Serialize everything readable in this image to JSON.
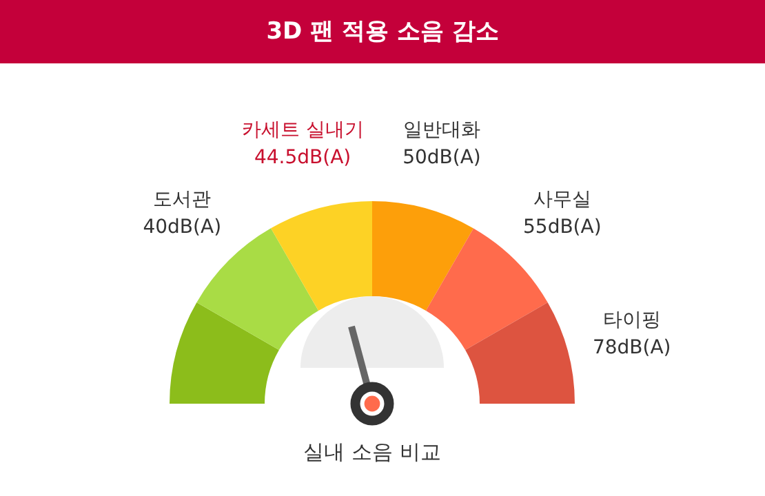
{
  "chart_data": {
    "type": "donut",
    "title": "3D 팬 적용 소음 감소",
    "categories": [
      null,
      "도서관\n40dB(A)",
      "카세트 실내기\n44.5dB(A)",
      "일반대화\n50dB(A)",
      "사무실\n55dB(A)",
      "타이핑\n78dB(A)"
    ],
    "values": [
      16.67,
      16.67,
      16.66,
      16.67,
      16.67,
      16.66
    ],
    "colors": [
      "#8cbd1b",
      "#a9dc45",
      "#fdd225",
      "#fd9f0a",
      "#ff6b4c",
      "#dd5440"
    ],
    "needle": "카세트 실내기\n44.5dB(A)",
    "annotations": [
      "실내 소음 비교"
    ]
  }
}
